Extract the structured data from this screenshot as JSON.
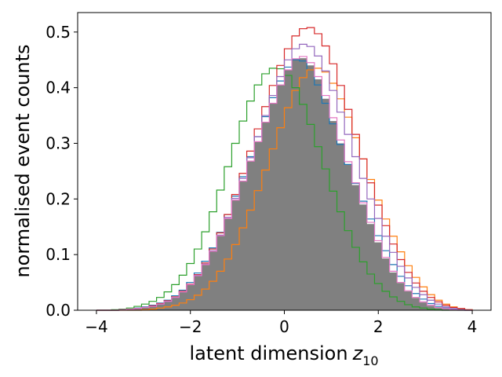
{
  "chart_data": {
    "type": "histogram",
    "xlabel": "latent dimension",
    "xlabel_symbol": "z",
    "xlabel_subscript": "10",
    "ylabel": "normalised event counts",
    "xlim": [
      -4.4,
      4.4
    ],
    "ylim": [
      0,
      0.535
    ],
    "xticks": [
      -4,
      -2,
      0,
      2,
      4
    ],
    "xtick_labels": [
      "−4",
      "−2",
      "0",
      "2",
      "4"
    ],
    "yticks": [
      0.0,
      0.1,
      0.2,
      0.3,
      0.4,
      0.5
    ],
    "ytick_labels": [
      "0.0",
      "0.1",
      "0.2",
      "0.3",
      "0.4",
      "0.5"
    ],
    "grid": false,
    "legend": "none",
    "bin_edges_range": [
      -4,
      4
    ],
    "bin_count": 50,
    "filled_series": {
      "color": "#808080",
      "values": [
        0.0,
        0.0,
        0.0,
        0.001,
        0.002,
        0.003,
        0.005,
        0.007,
        0.011,
        0.016,
        0.023,
        0.033,
        0.046,
        0.062,
        0.082,
        0.106,
        0.134,
        0.165,
        0.198,
        0.232,
        0.268,
        0.303,
        0.338,
        0.372,
        0.405,
        0.432,
        0.452,
        0.453,
        0.44,
        0.415,
        0.38,
        0.34,
        0.3,
        0.262,
        0.225,
        0.19,
        0.155,
        0.122,
        0.093,
        0.068,
        0.049,
        0.034,
        0.022,
        0.014,
        0.008,
        0.004,
        0.002,
        0.001,
        0.0,
        0.0
      ]
    },
    "series": [
      {
        "color": "#1f77b4",
        "values": [
          0.0,
          0.0,
          0.0,
          0.001,
          0.002,
          0.004,
          0.006,
          0.009,
          0.013,
          0.018,
          0.026,
          0.036,
          0.05,
          0.067,
          0.088,
          0.112,
          0.14,
          0.172,
          0.205,
          0.24,
          0.276,
          0.312,
          0.348,
          0.382,
          0.412,
          0.437,
          0.45,
          0.448,
          0.432,
          0.405,
          0.372,
          0.335,
          0.298,
          0.262,
          0.228,
          0.196,
          0.164,
          0.134,
          0.107,
          0.082,
          0.061,
          0.044,
          0.03,
          0.02,
          0.012,
          0.007,
          0.004,
          0.002,
          0.001,
          0.0
        ]
      },
      {
        "color": "#ff7f0e",
        "values": [
          0.0,
          0.0,
          0.0,
          0.0,
          0.0,
          0.0,
          0.001,
          0.002,
          0.004,
          0.006,
          0.009,
          0.013,
          0.019,
          0.027,
          0.038,
          0.052,
          0.07,
          0.092,
          0.118,
          0.148,
          0.18,
          0.215,
          0.252,
          0.29,
          0.328,
          0.364,
          0.395,
          0.418,
          0.432,
          0.435,
          0.428,
          0.408,
          0.38,
          0.347,
          0.31,
          0.272,
          0.235,
          0.198,
          0.164,
          0.133,
          0.105,
          0.08,
          0.059,
          0.042,
          0.028,
          0.018,
          0.011,
          0.006,
          0.003,
          0.001
        ]
      },
      {
        "color": "#2ca02c",
        "values": [
          0.0,
          0.0,
          0.001,
          0.002,
          0.004,
          0.007,
          0.011,
          0.016,
          0.023,
          0.033,
          0.046,
          0.063,
          0.084,
          0.11,
          0.141,
          0.177,
          0.216,
          0.258,
          0.3,
          0.34,
          0.376,
          0.405,
          0.425,
          0.435,
          0.434,
          0.422,
          0.4,
          0.37,
          0.334,
          0.294,
          0.254,
          0.214,
          0.177,
          0.143,
          0.113,
          0.087,
          0.065,
          0.048,
          0.034,
          0.024,
          0.016,
          0.01,
          0.006,
          0.004,
          0.002,
          0.001,
          0.0,
          0.0,
          0.0,
          0.0
        ]
      },
      {
        "color": "#d62728",
        "values": [
          0.0,
          0.0,
          0.0,
          0.001,
          0.002,
          0.003,
          0.005,
          0.008,
          0.012,
          0.017,
          0.024,
          0.034,
          0.047,
          0.064,
          0.085,
          0.11,
          0.139,
          0.172,
          0.208,
          0.246,
          0.286,
          0.326,
          0.366,
          0.404,
          0.44,
          0.47,
          0.493,
          0.506,
          0.508,
          0.497,
          0.475,
          0.443,
          0.404,
          0.361,
          0.316,
          0.272,
          0.229,
          0.189,
          0.152,
          0.119,
          0.091,
          0.068,
          0.049,
          0.034,
          0.023,
          0.015,
          0.009,
          0.005,
          0.003,
          0.001
        ]
      },
      {
        "color": "#9467bd",
        "values": [
          0.0,
          0.0,
          0.0,
          0.001,
          0.002,
          0.003,
          0.005,
          0.007,
          0.011,
          0.016,
          0.023,
          0.033,
          0.046,
          0.063,
          0.083,
          0.107,
          0.135,
          0.167,
          0.201,
          0.237,
          0.274,
          0.312,
          0.35,
          0.386,
          0.42,
          0.45,
          0.47,
          0.478,
          0.474,
          0.457,
          0.43,
          0.395,
          0.356,
          0.316,
          0.276,
          0.237,
          0.2,
          0.165,
          0.133,
          0.104,
          0.079,
          0.058,
          0.041,
          0.028,
          0.018,
          0.011,
          0.006,
          0.003,
          0.001,
          0.0
        ]
      },
      {
        "color": "#e377c2",
        "values": [
          0.0,
          0.0,
          0.0,
          0.001,
          0.002,
          0.003,
          0.005,
          0.007,
          0.011,
          0.016,
          0.023,
          0.033,
          0.046,
          0.062,
          0.082,
          0.106,
          0.134,
          0.165,
          0.198,
          0.232,
          0.268,
          0.303,
          0.338,
          0.372,
          0.405,
          0.432,
          0.452,
          0.456,
          0.445,
          0.42,
          0.386,
          0.346,
          0.306,
          0.267,
          0.229,
          0.193,
          0.158,
          0.125,
          0.095,
          0.07,
          0.05,
          0.035,
          0.023,
          0.015,
          0.009,
          0.005,
          0.003,
          0.001,
          0.0,
          0.0
        ]
      }
    ]
  }
}
